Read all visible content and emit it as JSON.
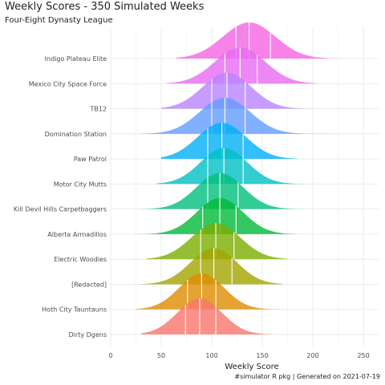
{
  "title": "Weekly Scores - 350 Simulated Weeks",
  "subtitle": "Four-Eight Dynasty League",
  "caption": "#simulator R pkg | Generated on 2021-07-19",
  "chart_data": {
    "type": "ridgeline",
    "xlabel": "Weekly Score",
    "xlim": [
      0,
      265
    ],
    "xticks": [
      0,
      50,
      100,
      150,
      200,
      250
    ],
    "grid": true,
    "legend": "none",
    "quantile_lines": [
      0.25,
      0.5,
      0.75
    ],
    "series": [
      {
        "name": "Indigo Plateau Elite",
        "color": "#F564E3",
        "mean": 137,
        "sd": 26,
        "min": 65,
        "max": 250,
        "q1": 124,
        "median": 137,
        "q3": 158
      },
      {
        "name": "Mexico City Space Force",
        "color": "#E76BF3",
        "mean": 128,
        "sd": 25,
        "min": 55,
        "max": 205,
        "q1": 113,
        "median": 128,
        "q3": 145
      },
      {
        "name": "TB12",
        "color": "#B983FF",
        "mean": 115,
        "sd": 24,
        "min": 50,
        "max": 215,
        "q1": 100,
        "median": 115,
        "q3": 133
      },
      {
        "name": "Domination Station",
        "color": "#619CFF",
        "mean": 113,
        "sd": 25,
        "min": 30,
        "max": 220,
        "q1": 100,
        "median": 113,
        "q3": 133
      },
      {
        "name": "Paw Patrol",
        "color": "#00B0F6",
        "mean": 110,
        "sd": 24,
        "min": 50,
        "max": 185,
        "q1": 96,
        "median": 110,
        "q3": 131
      },
      {
        "name": "Motor City Mutts",
        "color": "#00BFC4",
        "mean": 112,
        "sd": 23,
        "min": 45,
        "max": 195,
        "q1": 96,
        "median": 112,
        "q3": 131
      },
      {
        "name": "Kill Devil Hills Carpetbaggers",
        "color": "#00BF7D",
        "mean": 108,
        "sd": 23,
        "min": 30,
        "max": 220,
        "q1": 96,
        "median": 108,
        "q3": 126
      },
      {
        "name": "Alberta Armadillos",
        "color": "#00BA38",
        "mean": 108,
        "sd": 23,
        "min": 20,
        "max": 185,
        "q1": 91,
        "median": 108,
        "q3": 124
      },
      {
        "name": "Electric Woodies",
        "color": "#7CAE00",
        "mean": 104,
        "sd": 24,
        "min": 35,
        "max": 175,
        "q1": 89,
        "median": 104,
        "q3": 122
      },
      {
        "name": "[Redacted]",
        "color": "#A3A500",
        "mean": 102,
        "sd": 23,
        "min": 30,
        "max": 170,
        "q1": 89,
        "median": 102,
        "q3": 120
      },
      {
        "name": "Hoth City Tauntauns",
        "color": "#DE8C00",
        "mean": 90,
        "sd": 22,
        "min": 25,
        "max": 175,
        "q1": 76,
        "median": 90,
        "q3": 104
      },
      {
        "name": "Dirty Dgens",
        "color": "#F8766D",
        "mean": 88,
        "sd": 22,
        "min": 30,
        "max": 165,
        "q1": 74,
        "median": 88,
        "q3": 104
      }
    ]
  }
}
